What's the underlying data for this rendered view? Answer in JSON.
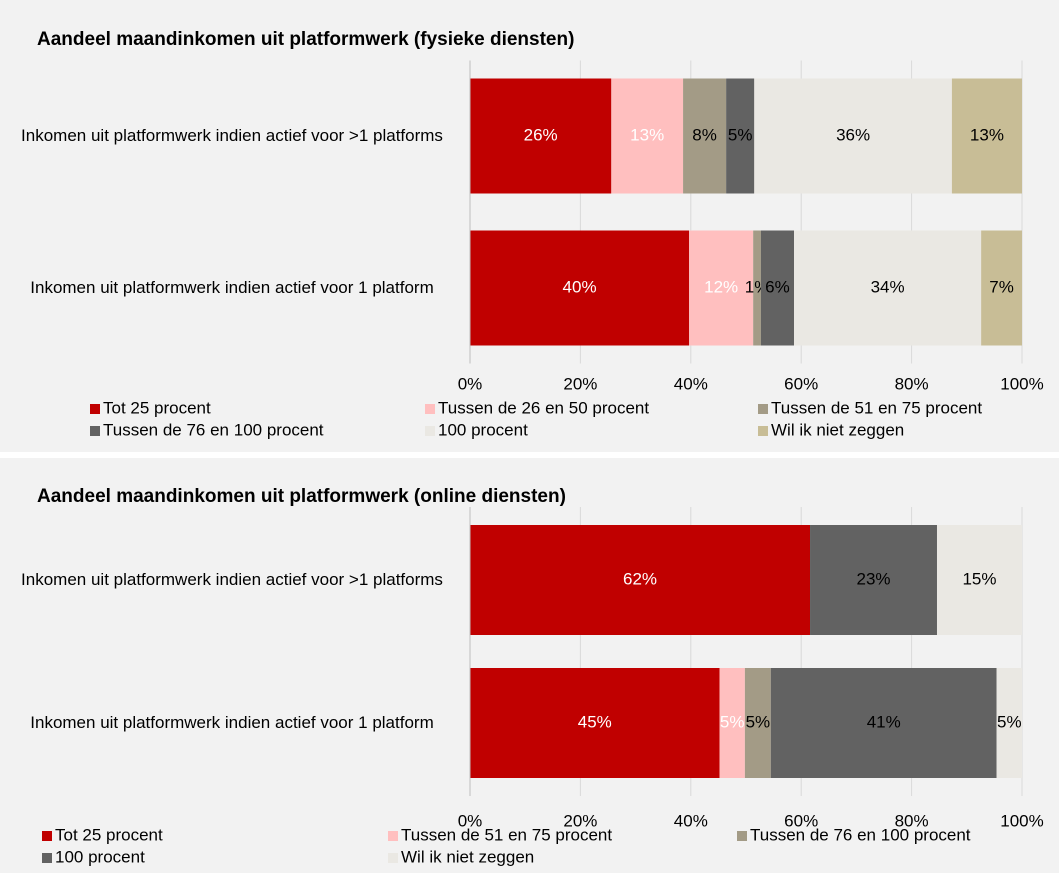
{
  "chart_data": [
    {
      "type": "bar",
      "orientation": "horizontal",
      "stacked": true,
      "title": "Aandeel maandinkomen uit platformwerk (fysieke diensten)",
      "categories": [
        "Inkomen uit platformwerk indien actief voor >1 platforms",
        "Inkomen uit platformwerk indien actief voor 1 platform"
      ],
      "xlim": [
        0,
        100
      ],
      "xticks": [
        {
          "value": 0,
          "label": "0%"
        },
        {
          "value": 20,
          "label": "20%"
        },
        {
          "value": 40,
          "label": "40%"
        },
        {
          "value": 60,
          "label": "60%"
        },
        {
          "value": 80,
          "label": "80%"
        },
        {
          "value": 100,
          "label": "100%"
        }
      ],
      "grid": true,
      "legend": "bottom",
      "series": [
        {
          "name": "Tot 25 procent",
          "color": "#c00000",
          "label_color": "#ffffff",
          "values": [
            25.6,
            39.7
          ],
          "value_labels": [
            "26%",
            "40%"
          ]
        },
        {
          "name": "Tussen de 26 en 50 procent",
          "color": "#ffbfbf",
          "label_color": "#ffffff",
          "values": [
            13.0,
            11.6
          ],
          "value_labels": [
            "13%",
            "12%"
          ]
        },
        {
          "name": "Tussen de 51 en 75 procent",
          "color": "#a39b86",
          "label_color": "#000000",
          "values": [
            7.8,
            1.4
          ],
          "value_labels": [
            "8%",
            "1%"
          ]
        },
        {
          "name": "Tussen de 76 en 100 procent",
          "color": "#626262",
          "label_color": "#000000",
          "values": [
            5.1,
            6.0
          ],
          "value_labels": [
            "5%",
            "6%"
          ]
        },
        {
          "name": "100 procent",
          "color": "#eae8e3",
          "label_color": "#000000",
          "values": [
            35.8,
            33.9
          ],
          "value_labels": [
            "36%",
            "34%"
          ]
        },
        {
          "name": "Wil ik niet zeggen",
          "color": "#c8bd96",
          "label_color": "#000000",
          "values": [
            12.7,
            7.4
          ],
          "value_labels": [
            "13%",
            "7%"
          ]
        }
      ]
    },
    {
      "type": "bar",
      "orientation": "horizontal",
      "stacked": true,
      "title": "Aandeel maandinkomen uit platformwerk (online diensten)",
      "categories": [
        "Inkomen uit platformwerk indien actief voor >1 platforms",
        "Inkomen uit platformwerk indien actief voor 1 platform"
      ],
      "xlim": [
        0,
        100
      ],
      "xticks": [
        {
          "value": 0,
          "label": "0%"
        },
        {
          "value": 20,
          "label": "20%"
        },
        {
          "value": 40,
          "label": "40%"
        },
        {
          "value": 60,
          "label": "60%"
        },
        {
          "value": 80,
          "label": "80%"
        },
        {
          "value": 100,
          "label": "100%"
        }
      ],
      "grid": true,
      "legend": "bottom",
      "series": [
        {
          "name": "Tot 25 procent",
          "color": "#c00000",
          "label_color": "#ffffff",
          "values": [
            61.6,
            45.2
          ],
          "value_labels": [
            "62%",
            "45%"
          ]
        },
        {
          "name": "Tussen de 51 en 75 procent",
          "color": "#ffbfbf",
          "label_color": "#ffffff",
          "values": [
            0,
            4.6
          ],
          "value_labels": [
            null,
            "5%"
          ]
        },
        {
          "name": "Tussen de 76 en 100 procent",
          "color": "#a39b86",
          "label_color": "#000000",
          "values": [
            0,
            4.7
          ],
          "value_labels": [
            null,
            "5%"
          ]
        },
        {
          "name": "100 procent",
          "color": "#626262",
          "label_color": "#000000",
          "values": [
            23.0,
            40.9
          ],
          "value_labels": [
            "23%",
            "41%"
          ]
        },
        {
          "name": "Wil ik niet zeggen",
          "color": "#eae8e3",
          "label_color": "#000000",
          "values": [
            15.4,
            4.6
          ],
          "value_labels": [
            "15%",
            "5%"
          ]
        }
      ]
    }
  ]
}
